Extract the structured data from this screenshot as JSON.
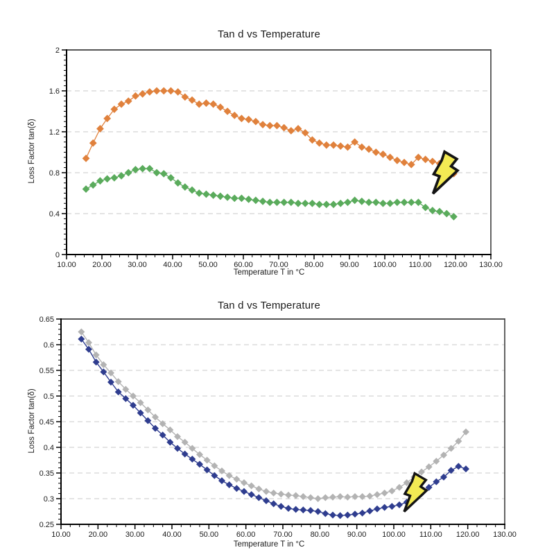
{
  "page": {
    "background": "#ffffff"
  },
  "chart_data": [
    {
      "type": "line",
      "title": "Tan d vs Temperature",
      "xlabel": "Temperature T in °C",
      "ylabel": "Loss Factor tan(δ)",
      "xlim": [
        10,
        130
      ],
      "ylim": [
        0,
        2
      ],
      "x_ticks": [
        10,
        20,
        30,
        40,
        50,
        60,
        70,
        80,
        90,
        100,
        110,
        120,
        130
      ],
      "x_tick_labels": [
        "10.00",
        "20.00",
        "30.00",
        "40.00",
        "50.00",
        "60.00",
        "70.00",
        "80.00",
        "90.00",
        "100.00",
        "110.00",
        "120.00",
        "130.00"
      ],
      "y_ticks": [
        0,
        0.4,
        0.8,
        1.2,
        1.6,
        2
      ],
      "y_tick_labels": [
        "0",
        "0.4",
        "0.8",
        "1.2",
        "1.6",
        "2"
      ],
      "x_minor_step": 2.5,
      "y_minor_step": 0.05,
      "grid": "horizontal-dashed",
      "legend_position": "none",
      "marker": "diamond",
      "x": [
        15.5,
        17.5,
        19.5,
        21.5,
        23.5,
        25.5,
        27.5,
        29.5,
        31.5,
        33.5,
        35.5,
        37.5,
        39.5,
        41.5,
        43.5,
        45.5,
        47.5,
        49.5,
        51.5,
        53.5,
        55.5,
        57.5,
        59.5,
        61.5,
        63.5,
        65.5,
        67.5,
        69.5,
        71.5,
        73.5,
        75.5,
        77.5,
        79.5,
        81.5,
        83.5,
        85.5,
        87.5,
        89.5,
        91.5,
        93.5,
        95.5,
        97.5,
        99.5,
        101.5,
        103.5,
        105.5,
        107.5,
        109.5,
        111.5,
        113.5,
        115.5,
        117.5,
        119.5
      ],
      "series": [
        {
          "name": "orange-series",
          "color": "#e0813c",
          "values": [
            0.94,
            1.09,
            1.23,
            1.33,
            1.42,
            1.47,
            1.5,
            1.55,
            1.57,
            1.59,
            1.6,
            1.6,
            1.6,
            1.59,
            1.54,
            1.51,
            1.47,
            1.48,
            1.47,
            1.44,
            1.4,
            1.36,
            1.33,
            1.32,
            1.3,
            1.27,
            1.26,
            1.26,
            1.24,
            1.21,
            1.23,
            1.19,
            1.12,
            1.09,
            1.07,
            1.07,
            1.06,
            1.05,
            1.1,
            1.05,
            1.03,
            1.0,
            0.98,
            0.95,
            0.92,
            0.9,
            0.88,
            0.95,
            0.93,
            0.91,
            0.89,
            0.84,
            0.79
          ]
        },
        {
          "name": "green-series",
          "color": "#5aab5c",
          "values": [
            0.64,
            0.68,
            0.72,
            0.74,
            0.75,
            0.77,
            0.8,
            0.83,
            0.84,
            0.84,
            0.8,
            0.79,
            0.75,
            0.7,
            0.66,
            0.63,
            0.6,
            0.59,
            0.58,
            0.57,
            0.56,
            0.55,
            0.55,
            0.54,
            0.53,
            0.52,
            0.51,
            0.51,
            0.51,
            0.51,
            0.5,
            0.5,
            0.5,
            0.49,
            0.49,
            0.49,
            0.5,
            0.51,
            0.53,
            0.52,
            0.51,
            0.51,
            0.5,
            0.5,
            0.51,
            0.51,
            0.51,
            0.51,
            0.46,
            0.43,
            0.42,
            0.4,
            0.37
          ]
        }
      ],
      "annotations": [
        {
          "type": "lightning-bolt",
          "x": 116.5,
          "y": 0.8,
          "fill": "#f3ea54",
          "outline": "#141414"
        }
      ]
    },
    {
      "type": "line",
      "title": "Tan d vs Temperature",
      "xlabel": "Temperature T in °C",
      "ylabel": "Loss Factor tan(δ)",
      "xlim": [
        10,
        130
      ],
      "ylim": [
        0.25,
        0.65
      ],
      "x_ticks": [
        10,
        20,
        30,
        40,
        50,
        60,
        70,
        80,
        90,
        100,
        110,
        120,
        130
      ],
      "x_tick_labels": [
        "10.00",
        "20.00",
        "30.00",
        "40.00",
        "50.00",
        "60.00",
        "70.00",
        "80.00",
        "90.00",
        "100.00",
        "110.00",
        "120.00",
        "130.00"
      ],
      "y_ticks": [
        0.25,
        0.3,
        0.35,
        0.4,
        0.45,
        0.5,
        0.55,
        0.6,
        0.65
      ],
      "y_tick_labels": [
        "0.25",
        "0.3",
        "0.35",
        "0.4",
        "0.45",
        "0.5",
        "0.55",
        "0.6",
        "0.65"
      ],
      "x_minor_step": 2.5,
      "y_minor_step": 0.01,
      "grid": "horizontal-dashed",
      "legend_position": "none",
      "marker": "diamond",
      "x": [
        15.5,
        17.5,
        19.5,
        21.5,
        23.5,
        25.5,
        27.5,
        29.5,
        31.5,
        33.5,
        35.5,
        37.5,
        39.5,
        41.5,
        43.5,
        45.5,
        47.5,
        49.5,
        51.5,
        53.5,
        55.5,
        57.5,
        59.5,
        61.5,
        63.5,
        65.5,
        67.5,
        69.5,
        71.5,
        73.5,
        75.5,
        77.5,
        79.5,
        81.5,
        83.5,
        85.5,
        87.5,
        89.5,
        91.5,
        93.5,
        95.5,
        97.5,
        99.5,
        101.5,
        103.5,
        105.5,
        107.5,
        109.5,
        111.5,
        113.5,
        115.5,
        117.5,
        119.5
      ],
      "series": [
        {
          "name": "gray-series",
          "color": "#b3b3b3",
          "values": [
            0.625,
            0.604,
            0.58,
            0.561,
            0.545,
            0.528,
            0.513,
            0.5,
            0.487,
            0.473,
            0.459,
            0.446,
            0.434,
            0.421,
            0.41,
            0.398,
            0.386,
            0.375,
            0.364,
            0.354,
            0.345,
            0.338,
            0.331,
            0.325,
            0.319,
            0.314,
            0.311,
            0.309,
            0.307,
            0.306,
            0.304,
            0.302,
            0.3,
            0.302,
            0.303,
            0.304,
            0.303,
            0.304,
            0.304,
            0.305,
            0.308,
            0.311,
            0.315,
            0.322,
            0.331,
            0.342,
            0.352,
            0.362,
            0.373,
            0.385,
            0.398,
            0.412,
            0.43
          ]
        },
        {
          "name": "blue-series",
          "color": "#2f3d8f",
          "values": [
            0.611,
            0.591,
            0.566,
            0.547,
            0.527,
            0.508,
            0.495,
            0.482,
            0.467,
            0.452,
            0.437,
            0.424,
            0.41,
            0.398,
            0.387,
            0.377,
            0.367,
            0.356,
            0.345,
            0.335,
            0.327,
            0.32,
            0.314,
            0.308,
            0.302,
            0.296,
            0.29,
            0.285,
            0.281,
            0.279,
            0.278,
            0.277,
            0.275,
            0.271,
            0.268,
            0.267,
            0.268,
            0.27,
            0.272,
            0.276,
            0.28,
            0.283,
            0.285,
            0.288,
            0.293,
            0.3,
            0.31,
            0.322,
            0.333,
            0.342,
            0.355,
            0.363,
            0.358
          ]
        }
      ],
      "annotations": [
        {
          "type": "lightning-bolt",
          "x": 105.3,
          "y": 0.312,
          "fill": "#f3ea54",
          "outline": "#141414"
        }
      ]
    }
  ]
}
